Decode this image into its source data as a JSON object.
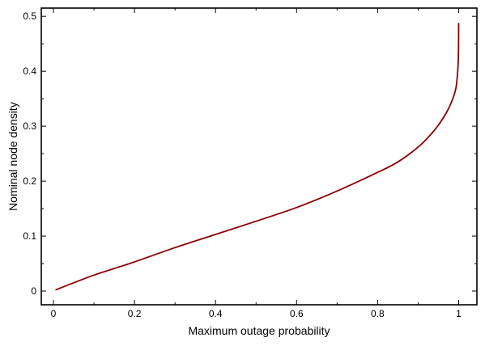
{
  "chart_data": {
    "type": "line",
    "title": "",
    "xlabel": "Maximum outage probability",
    "ylabel": "Nominal node density",
    "xlim": [
      -0.03,
      1.045
    ],
    "ylim": [
      -0.025,
      0.515
    ],
    "grid": false,
    "x_ticks": [
      {
        "value": 0,
        "label": "0"
      },
      {
        "value": 0.2,
        "label": "0.2"
      },
      {
        "value": 0.4,
        "label": "0.4"
      },
      {
        "value": 0.6,
        "label": "0.6"
      },
      {
        "value": 0.8,
        "label": "0.8"
      },
      {
        "value": 1,
        "label": "1"
      }
    ],
    "y_ticks": [
      {
        "value": 0,
        "label": "0"
      },
      {
        "value": 0.1,
        "label": "0.1"
      },
      {
        "value": 0.2,
        "label": "0.2"
      },
      {
        "value": 0.3,
        "label": "0.3"
      },
      {
        "value": 0.4,
        "label": "0.4"
      },
      {
        "value": 0.5,
        "label": "0.5"
      }
    ],
    "series": [
      {
        "color": "#8b0000",
        "x": [
          0.005,
          0.05,
          0.1,
          0.15,
          0.2,
          0.3,
          0.4,
          0.5,
          0.6,
          0.7,
          0.8,
          0.85,
          0.9,
          0.93,
          0.95,
          0.97,
          0.98,
          0.99,
          0.995,
          0.999,
          1.0
        ],
        "y": [
          0.002,
          0.015,
          0.029,
          0.041,
          0.053,
          0.079,
          0.103,
          0.127,
          0.152,
          0.182,
          0.216,
          0.235,
          0.262,
          0.284,
          0.302,
          0.325,
          0.34,
          0.36,
          0.378,
          0.42,
          0.488
        ]
      }
    ]
  }
}
